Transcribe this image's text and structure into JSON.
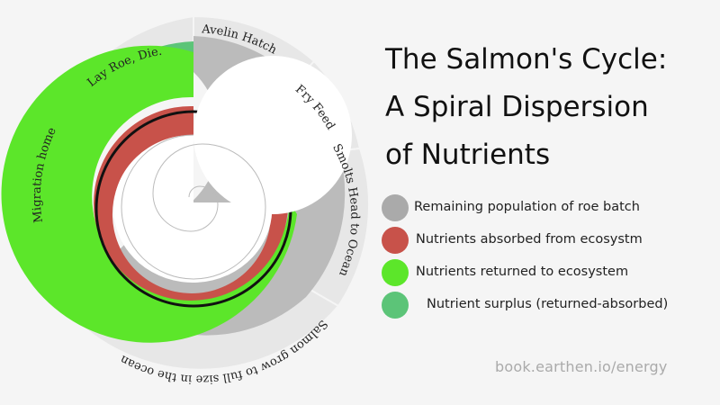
{
  "title_lines": [
    "The Salmon's Cycle:",
    "A Spiral Dispersion",
    "of Nutrients"
  ],
  "stages": [
    "Avelin Hatch",
    "Fry Feed",
    "Smolts Head to Ocean",
    "Salmon grow to full size in the ocean",
    "Migration home",
    "Lay Roe, Die."
  ],
  "legend": [
    {
      "label": "Remaining population of roe batch",
      "color": "#aaaaaa"
    },
    {
      "label": "Nutrients absorbed from ecosystm",
      "color": "#c8524a"
    },
    {
      "label": "Nutrients returned to ecosystem",
      "color": "#5ce62a"
    },
    {
      "label": "Nutrient surplus (returned-absorbed)",
      "color": "#5cc478"
    }
  ],
  "credit": "book.earthen.io/energy"
}
